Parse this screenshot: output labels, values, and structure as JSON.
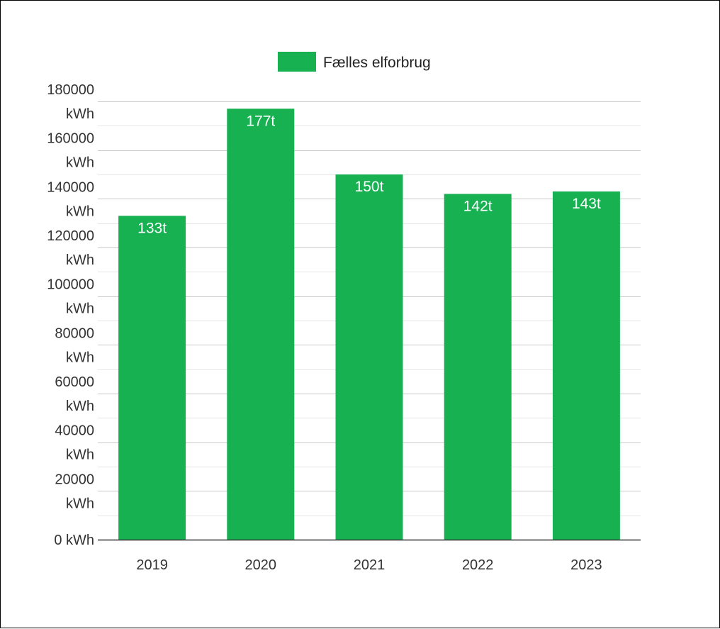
{
  "chart_data": {
    "type": "bar",
    "categories": [
      "2019",
      "2020",
      "2021",
      "2022",
      "2023"
    ],
    "series": [
      {
        "name": "Fælles elforbrug",
        "values": [
          133000,
          177000,
          150000,
          142000,
          143000
        ],
        "data_labels": [
          "133t",
          "177t",
          "150t",
          "142t",
          "143t"
        ]
      }
    ],
    "ylim": [
      0,
      180000
    ],
    "yticks": [
      0,
      20000,
      40000,
      60000,
      80000,
      100000,
      120000,
      140000,
      160000,
      180000
    ],
    "ytick_labels": [
      "0 kWh",
      "20000 kWh",
      "40000 kWh",
      "60000 kWh",
      "80000 kWh",
      "100000 kWh",
      "120000 kWh",
      "140000 kWh",
      "160000 kWh",
      "180000 kWh"
    ],
    "title": "",
    "xlabel": "",
    "ylabel": "",
    "grid": true,
    "legend_position": "top",
    "bar_color": "#17b152",
    "gridline_color": "#cccccc",
    "axis_color": "#333333"
  }
}
